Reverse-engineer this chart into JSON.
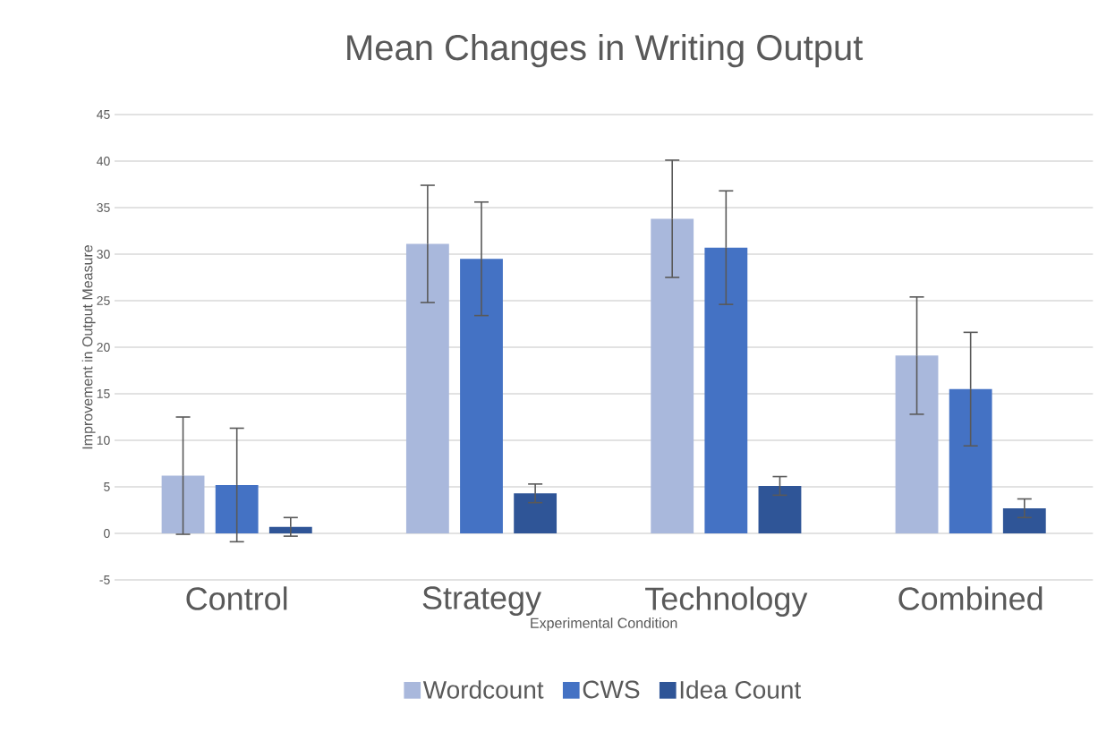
{
  "chart_data": {
    "type": "bar",
    "title": "Mean Changes in Writing Output",
    "xlabel": "Experimental Condition",
    "ylabel": "Improvement in Output Measure",
    "categories": [
      "Control",
      "Strategy",
      "Technology",
      "Combined"
    ],
    "series": [
      {
        "name": "Wordcount",
        "color": "#a9b8dc",
        "values": [
          6.2,
          31.1,
          33.8,
          19.1
        ],
        "errors": [
          6.3,
          6.3,
          6.3,
          6.3
        ]
      },
      {
        "name": "CWS",
        "color": "#4472c4",
        "values": [
          5.2,
          29.5,
          30.7,
          15.5
        ],
        "errors": [
          6.1,
          6.1,
          6.1,
          6.1
        ]
      },
      {
        "name": "Idea Count",
        "color": "#2f5597",
        "values": [
          0.7,
          4.3,
          5.1,
          2.7
        ],
        "errors": [
          1.0,
          1.0,
          1.0,
          1.0
        ]
      }
    ],
    "ylim": [
      -5,
      45
    ],
    "yticks": [
      -5,
      0,
      5,
      10,
      15,
      20,
      25,
      30,
      35,
      40,
      45
    ],
    "grid": "y",
    "legend": "bottom"
  }
}
